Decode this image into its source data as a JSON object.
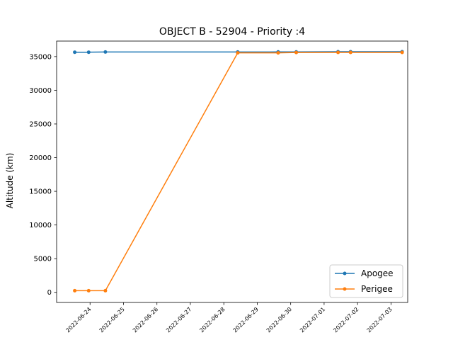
{
  "chart_data": {
    "type": "line",
    "title": "OBJECT B - 52904 - Priority :4",
    "xlabel": "",
    "ylabel": "Altitude (km)",
    "xlim": [
      "2022-06-23T00:00",
      "2022-07-03T12:00"
    ],
    "ylim": [
      -1500,
      37300
    ],
    "grid": false,
    "legend_position": "bottom-right",
    "x_ticks": [
      "2022-06-24",
      "2022-06-25",
      "2022-06-26",
      "2022-06-27",
      "2022-06-28",
      "2022-06-29",
      "2022-06-30",
      "2022-07-01",
      "2022-07-02",
      "2022-07-03"
    ],
    "y_ticks": [
      0,
      5000,
      10000,
      15000,
      20000,
      25000,
      30000,
      35000
    ],
    "series": [
      {
        "name": "Apogee",
        "color": "#1f77b4",
        "points": [
          {
            "x": "2022-06-23T13:00",
            "y": 35650
          },
          {
            "x": "2022-06-23T23:00",
            "y": 35650
          },
          {
            "x": "2022-06-24T11:00",
            "y": 35680
          },
          {
            "x": "2022-06-28T10:00",
            "y": 35680
          },
          {
            "x": "2022-06-29T15:00",
            "y": 35690
          },
          {
            "x": "2022-06-30T04:00",
            "y": 35690
          },
          {
            "x": "2022-07-01T10:00",
            "y": 35720
          },
          {
            "x": "2022-07-01T19:00",
            "y": 35720
          },
          {
            "x": "2022-07-03T08:00",
            "y": 35720
          }
        ]
      },
      {
        "name": "Perigee",
        "color": "#ff7f0e",
        "points": [
          {
            "x": "2022-06-23T13:00",
            "y": 250
          },
          {
            "x": "2022-06-23T23:00",
            "y": 250
          },
          {
            "x": "2022-06-24T11:00",
            "y": 250
          },
          {
            "x": "2022-06-28T10:00",
            "y": 35550
          },
          {
            "x": "2022-06-29T15:00",
            "y": 35550
          },
          {
            "x": "2022-06-30T04:00",
            "y": 35600
          },
          {
            "x": "2022-07-01T10:00",
            "y": 35620
          },
          {
            "x": "2022-07-01T19:00",
            "y": 35620
          },
          {
            "x": "2022-07-03T08:00",
            "y": 35620
          }
        ]
      }
    ]
  }
}
